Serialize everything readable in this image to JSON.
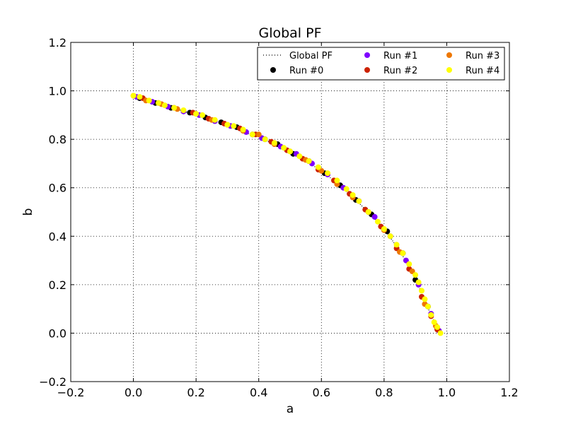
{
  "chart_data": {
    "type": "scatter",
    "title": "Global PF",
    "xlabel": "a",
    "ylabel": "b",
    "xlim": [
      -0.2,
      1.2
    ],
    "ylim": [
      -0.2,
      1.2
    ],
    "grid": true,
    "grid_style": "dotted",
    "legend_position": "top-right",
    "legend_columns": 3,
    "x_ticks": [
      -0.2,
      0.0,
      0.2,
      0.4,
      0.6,
      0.8,
      1.0,
      1.2
    ],
    "y_ticks": [
      -0.2,
      0.0,
      0.2,
      0.4,
      0.6,
      0.8,
      1.0,
      1.2
    ],
    "x_tick_labels": [
      "−0.2",
      "0.0",
      "0.2",
      "0.4",
      "0.6",
      "0.8",
      "1.0",
      "1.2"
    ],
    "y_tick_labels": [
      "−0.2",
      "0.0",
      "0.2",
      "0.4",
      "0.6",
      "0.8",
      "1.0",
      "1.2"
    ],
    "global_pf": {
      "name": "Global PF",
      "color": "#000000",
      "style": "dotted",
      "x": [
        0.0,
        0.05,
        0.1,
        0.15,
        0.2,
        0.25,
        0.3,
        0.35,
        0.4,
        0.45,
        0.5,
        0.55,
        0.6,
        0.65,
        0.7,
        0.75,
        0.8,
        0.85,
        0.9,
        0.93,
        0.96,
        0.98
      ],
      "y": [
        0.98,
        0.96,
        0.94,
        0.92,
        0.9,
        0.88,
        0.86,
        0.83,
        0.81,
        0.78,
        0.75,
        0.71,
        0.67,
        0.62,
        0.56,
        0.5,
        0.43,
        0.34,
        0.23,
        0.13,
        0.05,
        0.0
      ]
    },
    "series": [
      {
        "name": "Run #0",
        "color": "#000000",
        "x": [
          0.02,
          0.07,
          0.12,
          0.18,
          0.23,
          0.28,
          0.33,
          0.38,
          0.42,
          0.46,
          0.51,
          0.56,
          0.61,
          0.66,
          0.71,
          0.76,
          0.81,
          0.86,
          0.9,
          0.94,
          0.97
        ],
        "y": [
          0.97,
          0.95,
          0.93,
          0.91,
          0.89,
          0.87,
          0.85,
          0.82,
          0.8,
          0.78,
          0.74,
          0.71,
          0.66,
          0.61,
          0.55,
          0.49,
          0.42,
          0.33,
          0.22,
          0.11,
          0.02
        ]
      },
      {
        "name": "Run #1",
        "color": "#7f00ff",
        "x": [
          0.01,
          0.06,
          0.11,
          0.16,
          0.21,
          0.26,
          0.31,
          0.36,
          0.41,
          0.47,
          0.52,
          0.57,
          0.62,
          0.67,
          0.72,
          0.77,
          0.82,
          0.87,
          0.91,
          0.95,
          0.975
        ],
        "y": [
          0.975,
          0.955,
          0.935,
          0.915,
          0.9,
          0.875,
          0.855,
          0.83,
          0.805,
          0.77,
          0.74,
          0.7,
          0.655,
          0.6,
          0.545,
          0.48,
          0.4,
          0.3,
          0.2,
          0.08,
          0.01
        ]
      },
      {
        "name": "Run #2",
        "color": "#cc2200",
        "x": [
          0.03,
          0.08,
          0.13,
          0.19,
          0.24,
          0.29,
          0.34,
          0.39,
          0.44,
          0.49,
          0.54,
          0.59,
          0.64,
          0.69,
          0.74,
          0.79,
          0.84,
          0.88,
          0.92,
          0.95,
          0.97
        ],
        "y": [
          0.97,
          0.95,
          0.93,
          0.91,
          0.885,
          0.865,
          0.845,
          0.82,
          0.79,
          0.755,
          0.72,
          0.675,
          0.63,
          0.575,
          0.51,
          0.44,
          0.35,
          0.265,
          0.15,
          0.07,
          0.015
        ]
      },
      {
        "name": "Run #3",
        "color": "#ee7700",
        "x": [
          0.0,
          0.04,
          0.09,
          0.14,
          0.2,
          0.25,
          0.3,
          0.35,
          0.4,
          0.45,
          0.5,
          0.55,
          0.6,
          0.65,
          0.7,
          0.75,
          0.8,
          0.85,
          0.89,
          0.93,
          0.965
        ],
        "y": [
          0.98,
          0.96,
          0.945,
          0.925,
          0.905,
          0.88,
          0.86,
          0.835,
          0.82,
          0.78,
          0.75,
          0.715,
          0.67,
          0.615,
          0.56,
          0.5,
          0.425,
          0.335,
          0.255,
          0.12,
          0.03
        ]
      },
      {
        "name": "Run #4",
        "color": "#ffff00",
        "x": [
          0.0,
          0.02,
          0.05,
          0.08,
          0.1,
          0.13,
          0.16,
          0.2,
          0.22,
          0.26,
          0.3,
          0.32,
          0.35,
          0.38,
          0.42,
          0.45,
          0.48,
          0.5,
          0.53,
          0.56,
          0.59,
          0.62,
          0.65,
          0.68,
          0.7,
          0.72,
          0.75,
          0.78,
          0.8,
          0.82,
          0.84,
          0.86,
          0.88,
          0.9,
          0.91,
          0.92,
          0.93,
          0.94,
          0.95,
          0.96,
          0.97,
          0.98
        ],
        "y": [
          0.98,
          0.975,
          0.96,
          0.95,
          0.94,
          0.93,
          0.92,
          0.905,
          0.9,
          0.88,
          0.86,
          0.855,
          0.84,
          0.82,
          0.8,
          0.785,
          0.765,
          0.75,
          0.73,
          0.71,
          0.685,
          0.66,
          0.63,
          0.595,
          0.57,
          0.545,
          0.5,
          0.46,
          0.43,
          0.4,
          0.365,
          0.33,
          0.285,
          0.24,
          0.21,
          0.175,
          0.14,
          0.11,
          0.075,
          0.045,
          0.025,
          0.0
        ]
      }
    ]
  }
}
